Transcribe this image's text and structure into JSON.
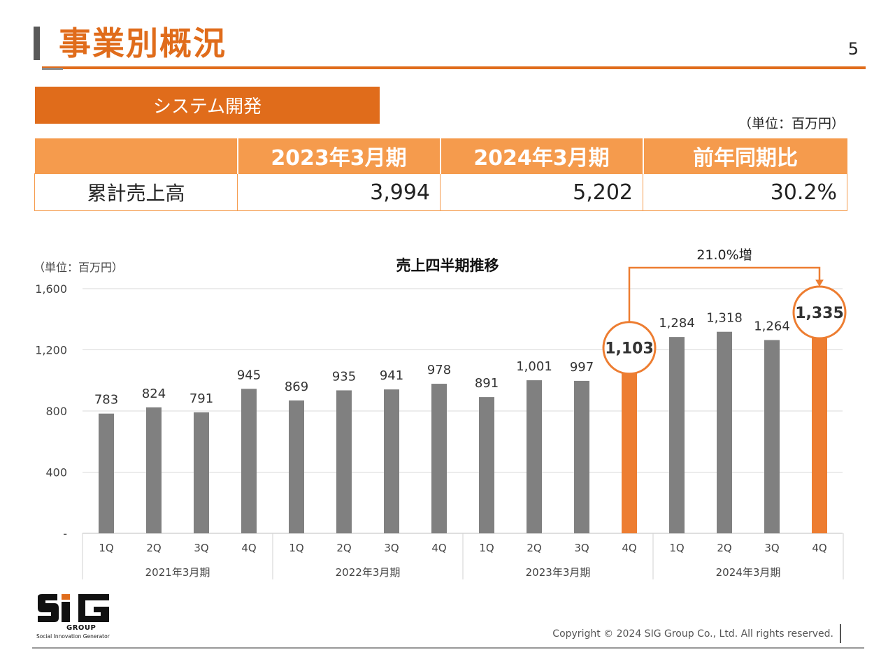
{
  "header": {
    "title": "事業別概況",
    "page_number": "5"
  },
  "segment": {
    "label": "システム開発",
    "unit": "（単位：百万円）"
  },
  "summary_table": {
    "headers": [
      "",
      "2023年3月期",
      "2024年3月期",
      "前年同期比"
    ],
    "row_label": "累計売上高",
    "values": [
      "3,994",
      "5,202",
      "30.2%"
    ]
  },
  "chart_data": {
    "type": "bar",
    "title": "売上四半期推移",
    "unit": "（単位：百万円）",
    "ylim": [
      0,
      1600
    ],
    "yticks": [
      0,
      400,
      800,
      1200,
      1600
    ],
    "ytick_labels": [
      "-",
      "400",
      "800",
      "1,200",
      "1,600"
    ],
    "categories": [
      "1Q",
      "2Q",
      "3Q",
      "4Q",
      "1Q",
      "2Q",
      "3Q",
      "4Q",
      "1Q",
      "2Q",
      "3Q",
      "4Q",
      "1Q",
      "2Q",
      "3Q",
      "4Q"
    ],
    "groups": [
      "2021年3月期",
      "2022年3月期",
      "2023年3月期",
      "2024年3月期"
    ],
    "values": [
      783,
      824,
      791,
      945,
      869,
      935,
      941,
      978,
      891,
      1001,
      997,
      1103,
      1284,
      1318,
      1264,
      1335
    ],
    "value_labels": [
      "783",
      "824",
      "791",
      "945",
      "869",
      "935",
      "941",
      "978",
      "891",
      "1,001",
      "997",
      "1,103",
      "1,284",
      "1,318",
      "1,264",
      "1,335"
    ],
    "highlighted_indices": [
      11,
      15
    ],
    "grid": true,
    "annotation": "21.0%増",
    "colors": {
      "bar": "#808080",
      "highlight": "#ed7d31",
      "grid": "#d9d9d9"
    }
  },
  "footer": {
    "logo_group": "GROUP",
    "logo_tagline": "Social Innovation Generator",
    "copyright": "Copyright © 2024  SIG Group Co., Ltd. All rights reserved."
  }
}
